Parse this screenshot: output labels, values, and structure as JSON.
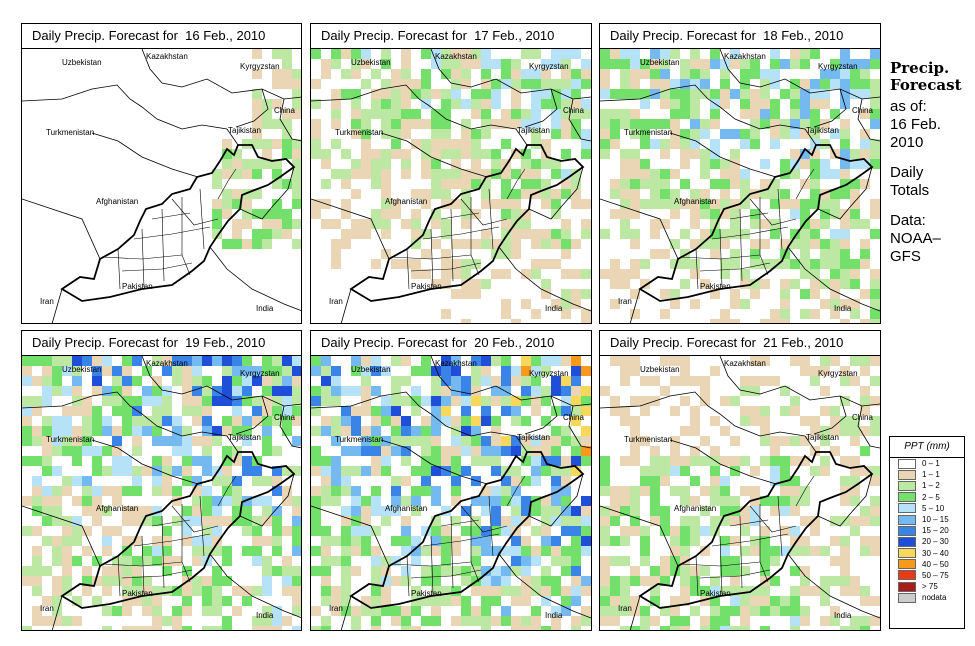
{
  "panels": [
    {
      "title": "Daily Precip. Forecast for  16 Feb., 2010",
      "intensity": 0
    },
    {
      "title": "Daily Precip. Forecast for  17 Feb., 2010",
      "intensity": 1
    },
    {
      "title": "Daily Precip. Forecast for  18 Feb., 2010",
      "intensity": 2
    },
    {
      "title": "Daily Precip. Forecast for  19 Feb., 2010",
      "intensity": 3
    },
    {
      "title": "Daily Precip. Forecast for  20 Feb., 2010",
      "intensity": 4
    },
    {
      "title": "Daily Precip. Forecast for  21 Feb., 2010",
      "intensity": 5
    }
  ],
  "map_labels": {
    "kazakhstan": "Kazakhstan",
    "uzbekistan": "Uzbekistan",
    "kyrgyzstan": "Kyrgyzstan",
    "china": "China",
    "turkmenistan": "Turkmenistan",
    "tajikistan": "Tajikistan",
    "afghanistan": "Afghanistan",
    "pakistan": "Pakistan",
    "iran": "Iran",
    "india": "India"
  },
  "sidebar": {
    "title_line1": "Precip.",
    "title_line2": "Forecast",
    "asof": "as of:",
    "date_line1": "16 Feb.",
    "date_line2": "2010",
    "totals_line1": "Daily",
    "totals_line2": "Totals",
    "data_line1": "Data:",
    "data_line2": "NOAA–",
    "data_line3": "GFS"
  },
  "legend": {
    "title": "PPT (mm)",
    "items": [
      {
        "label": "0 – 1",
        "color": "#ffffff"
      },
      {
        "label": "1 – 1",
        "color": "#ead6b4"
      },
      {
        "label": "1 – 2",
        "color": "#bde8a3"
      },
      {
        "label": "2 – 5",
        "color": "#72e06a"
      },
      {
        "label": "5 – 10",
        "color": "#b5e2f7"
      },
      {
        "label": "10 – 15",
        "color": "#74b9f0"
      },
      {
        "label": "15 – 20",
        "color": "#3a84e8"
      },
      {
        "label": "20 – 30",
        "color": "#1f4fd9"
      },
      {
        "label": "30 – 40",
        "color": "#f7d85a"
      },
      {
        "label": "40 – 50",
        "color": "#f79a1b"
      },
      {
        "label": "50 – 75",
        "color": "#e83a16"
      },
      {
        "label": "> 75",
        "color": "#a81c1c"
      },
      {
        "label": "nodata",
        "color": "#cccccc"
      }
    ]
  }
}
